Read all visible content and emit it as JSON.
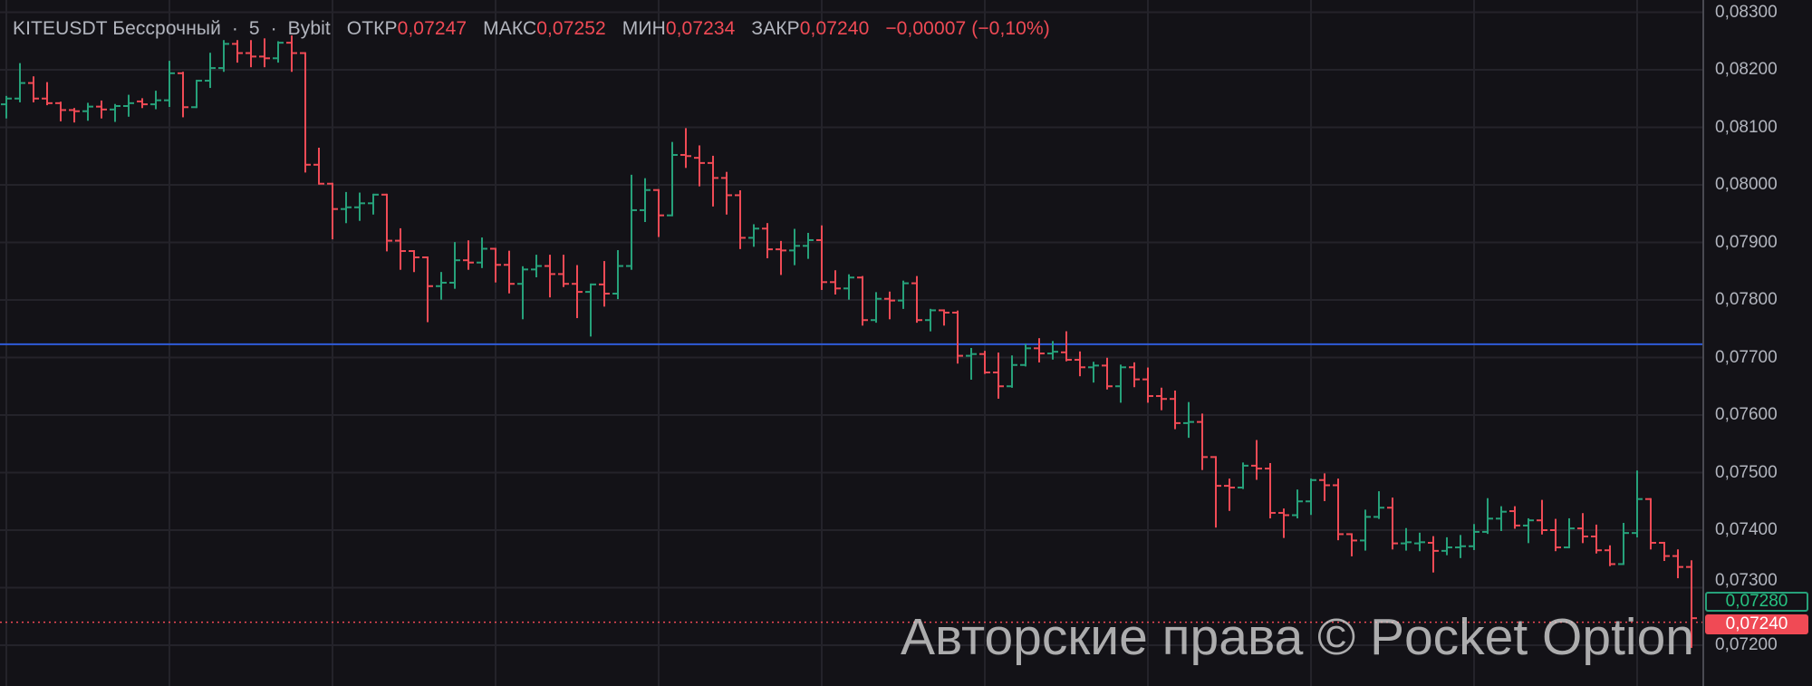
{
  "header": {
    "symbol": "KITEUSDT Бессрочный",
    "interval": "5",
    "exchange": "Bybit",
    "separator": "·",
    "open_label": "ОТКР",
    "open_value": "0,07247",
    "high_label": "МАКС",
    "high_value": "0,07252",
    "low_label": "МИН",
    "low_value": "0,07234",
    "close_label": "ЗАКР",
    "close_value": "0,07240",
    "change": "−0,00007 (−0,10%)"
  },
  "price_axis": {
    "labels": [
      "0,08300",
      "0,08200",
      "0,08100",
      "0,08000",
      "0,07900",
      "0,07800",
      "0,07700",
      "0,07600",
      "0,07500",
      "0,07400",
      "0,07300",
      "0,07200"
    ]
  },
  "price_tags": {
    "green": {
      "text": "0,07280",
      "price": 0.0728
    },
    "red": {
      "text": "0,07240",
      "price": 0.0724
    }
  },
  "watermark": "Авторские права © Pocket Option",
  "colors": {
    "background": "#131217",
    "up": "#26a17a",
    "down": "#f04a55",
    "grid": "#24232a",
    "horizontal_line": "#2f5bd8",
    "current_price_line": "#f04a55"
  },
  "chart_data": {
    "type": "bar",
    "bar_style": "ohlc",
    "title": "KITEUSDT Бессрочный · 5 · Bybit",
    "xlabel": "",
    "ylabel": "",
    "ylim": [
      0.0719,
      0.0831
    ],
    "grid": true,
    "horizontal_line": 0.07723,
    "current_price": 0.0724,
    "ohlc": [
      [
        0.0814,
        0.08153,
        0.08117,
        0.0815
      ],
      [
        0.0815,
        0.0821,
        0.08145,
        0.08177
      ],
      [
        0.08177,
        0.08187,
        0.08145,
        0.0815
      ],
      [
        0.0815,
        0.08177,
        0.0814,
        0.08142
      ],
      [
        0.08142,
        0.08143,
        0.08112,
        0.0813
      ],
      [
        0.0813,
        0.08132,
        0.0811,
        0.08128
      ],
      [
        0.08128,
        0.08141,
        0.08113,
        0.08136
      ],
      [
        0.08136,
        0.08145,
        0.08117,
        0.08131
      ],
      [
        0.08131,
        0.08139,
        0.08111,
        0.08137
      ],
      [
        0.08137,
        0.08155,
        0.0812,
        0.08142
      ],
      [
        0.08145,
        0.08149,
        0.08135,
        0.0814
      ],
      [
        0.0814,
        0.08162,
        0.08133,
        0.08147
      ],
      [
        0.08147,
        0.08214,
        0.08137,
        0.08194
      ],
      [
        0.08194,
        0.08195,
        0.08119,
        0.08135
      ],
      [
        0.08135,
        0.08181,
        0.08135,
        0.08181
      ],
      [
        0.08181,
        0.08228,
        0.0817,
        0.08203
      ],
      [
        0.08203,
        0.0825,
        0.08198,
        0.08245
      ],
      [
        0.08245,
        0.0825,
        0.08214,
        0.08229
      ],
      [
        0.08229,
        0.0825,
        0.08206,
        0.08223
      ],
      [
        0.08223,
        0.08253,
        0.08206,
        0.0822
      ],
      [
        0.0822,
        0.08248,
        0.08214,
        0.08247
      ],
      [
        0.08247,
        0.08258,
        0.08198,
        0.08229
      ],
      [
        0.08229,
        0.08229,
        0.08023,
        0.08035
      ],
      [
        0.08035,
        0.08063,
        0.08002,
        0.08002
      ],
      [
        0.08002,
        0.08002,
        0.07907,
        0.07958
      ],
      [
        0.07958,
        0.07986,
        0.07935,
        0.07961
      ],
      [
        0.07961,
        0.07985,
        0.07939,
        0.07968
      ],
      [
        0.07968,
        0.07983,
        0.0795,
        0.07983
      ],
      [
        0.07983,
        0.07983,
        0.07886,
        0.07903
      ],
      [
        0.07903,
        0.07923,
        0.07854,
        0.07885
      ],
      [
        0.07885,
        0.07885,
        0.0785,
        0.07874
      ],
      [
        0.07874,
        0.07874,
        0.07763,
        0.07824
      ],
      [
        0.07824,
        0.07847,
        0.07802,
        0.0783
      ],
      [
        0.0783,
        0.07899,
        0.07821,
        0.07869
      ],
      [
        0.07869,
        0.07902,
        0.07854,
        0.07865
      ],
      [
        0.07865,
        0.07907,
        0.07857,
        0.07889
      ],
      [
        0.07889,
        0.07889,
        0.07832,
        0.07861
      ],
      [
        0.07861,
        0.07884,
        0.07813,
        0.07828
      ],
      [
        0.07828,
        0.07857,
        0.07768,
        0.07853
      ],
      [
        0.07853,
        0.07877,
        0.07841,
        0.07859
      ],
      [
        0.07859,
        0.07877,
        0.07806,
        0.07845
      ],
      [
        0.07845,
        0.07877,
        0.07824,
        0.07828
      ],
      [
        0.07828,
        0.07859,
        0.0777,
        0.07814
      ],
      [
        0.07814,
        0.07827,
        0.07738,
        0.07827
      ],
      [
        0.07827,
        0.07866,
        0.0779,
        0.07811
      ],
      [
        0.07811,
        0.07885,
        0.07803,
        0.07859
      ],
      [
        0.07859,
        0.08016,
        0.07854,
        0.07956
      ],
      [
        0.07956,
        0.0801,
        0.07937,
        0.07991
      ],
      [
        0.07991,
        0.07991,
        0.07911,
        0.07947
      ],
      [
        0.07947,
        0.08073,
        0.07947,
        0.08052
      ],
      [
        0.08052,
        0.08097,
        0.08031,
        0.0805
      ],
      [
        0.08047,
        0.08067,
        0.07999,
        0.08038
      ],
      [
        0.08038,
        0.08049,
        0.07964,
        0.08012
      ],
      [
        0.08012,
        0.08021,
        0.0795,
        0.07982
      ],
      [
        0.07982,
        0.07989,
        0.0789,
        0.07908
      ],
      [
        0.07908,
        0.0793,
        0.07894,
        0.07924
      ],
      [
        0.07924,
        0.07932,
        0.07874,
        0.07888
      ],
      [
        0.07888,
        0.07901,
        0.07845,
        0.07886
      ],
      [
        0.07886,
        0.07922,
        0.07862,
        0.07894
      ],
      [
        0.07894,
        0.07915,
        0.07873,
        0.07904
      ],
      [
        0.07904,
        0.07928,
        0.07819,
        0.07831
      ],
      [
        0.07831,
        0.0785,
        0.07811,
        0.0782
      ],
      [
        0.0782,
        0.07843,
        0.07802,
        0.07839
      ],
      [
        0.07839,
        0.0784,
        0.07757,
        0.07765
      ],
      [
        0.07765,
        0.07812,
        0.07762,
        0.07802
      ],
      [
        0.07802,
        0.07813,
        0.07768,
        0.07799
      ],
      [
        0.07799,
        0.07832,
        0.07786,
        0.07829
      ],
      [
        0.07829,
        0.0784,
        0.07762,
        0.07765
      ],
      [
        0.07765,
        0.07783,
        0.07747,
        0.07782
      ],
      [
        0.07782,
        0.07782,
        0.07757,
        0.07778
      ],
      [
        0.07778,
        0.0778,
        0.07691,
        0.07703
      ],
      [
        0.07703,
        0.07715,
        0.07663,
        0.07706
      ],
      [
        0.07706,
        0.0771,
        0.07673,
        0.07674
      ],
      [
        0.07674,
        0.07707,
        0.0763,
        0.0765
      ],
      [
        0.0765,
        0.07702,
        0.07649,
        0.07687
      ],
      [
        0.07687,
        0.07722,
        0.07686,
        0.07716
      ],
      [
        0.07716,
        0.07732,
        0.07693,
        0.07707
      ],
      [
        0.07707,
        0.07727,
        0.07698,
        0.0771
      ],
      [
        0.07709,
        0.07744,
        0.07695,
        0.07696
      ],
      [
        0.07696,
        0.07709,
        0.07669,
        0.07683
      ],
      [
        0.07683,
        0.07691,
        0.07658,
        0.07686
      ],
      [
        0.07686,
        0.07698,
        0.07646,
        0.0765
      ],
      [
        0.0765,
        0.07686,
        0.07623,
        0.07683
      ],
      [
        0.07683,
        0.0769,
        0.0765,
        0.07662
      ],
      [
        0.07662,
        0.07681,
        0.07623,
        0.07633
      ],
      [
        0.07633,
        0.07646,
        0.0761,
        0.07628
      ],
      [
        0.07628,
        0.07641,
        0.07577,
        0.07586
      ],
      [
        0.07586,
        0.07621,
        0.07562,
        0.07588
      ],
      [
        0.07588,
        0.07601,
        0.07506,
        0.07527
      ],
      [
        0.07527,
        0.07527,
        0.07406,
        0.07477
      ],
      [
        0.07477,
        0.07488,
        0.07435,
        0.07474
      ],
      [
        0.07474,
        0.07516,
        0.07473,
        0.07512
      ],
      [
        0.07512,
        0.07555,
        0.07489,
        0.07507
      ],
      [
        0.07507,
        0.07515,
        0.07422,
        0.0743
      ],
      [
        0.0743,
        0.07436,
        0.07388,
        0.07426
      ],
      [
        0.07426,
        0.07469,
        0.07422,
        0.0745
      ],
      [
        0.0745,
        0.07488,
        0.07428,
        0.07487
      ],
      [
        0.07487,
        0.07497,
        0.07452,
        0.07478
      ],
      [
        0.07478,
        0.07488,
        0.07384,
        0.07393
      ],
      [
        0.07393,
        0.07393,
        0.07356,
        0.07382
      ],
      [
        0.07382,
        0.07434,
        0.07366,
        0.07423
      ],
      [
        0.07423,
        0.07466,
        0.07421,
        0.07439
      ],
      [
        0.07439,
        0.07455,
        0.07368,
        0.07377
      ],
      [
        0.07377,
        0.07402,
        0.07366,
        0.07379
      ],
      [
        0.07377,
        0.07394,
        0.07365,
        0.07379
      ],
      [
        0.07378,
        0.07388,
        0.07328,
        0.07364
      ],
      [
        0.07364,
        0.07386,
        0.07358,
        0.0737
      ],
      [
        0.0737,
        0.0739,
        0.07353,
        0.07372
      ],
      [
        0.07372,
        0.07409,
        0.07367,
        0.07397
      ],
      [
        0.07397,
        0.07454,
        0.07395,
        0.0742
      ],
      [
        0.0742,
        0.0744,
        0.074,
        0.07432
      ],
      [
        0.07433,
        0.0744,
        0.07404,
        0.07408
      ],
      [
        0.07408,
        0.07419,
        0.07379,
        0.07417
      ],
      [
        0.07417,
        0.07451,
        0.07394,
        0.074
      ],
      [
        0.074,
        0.07418,
        0.07365,
        0.0737
      ],
      [
        0.0737,
        0.07419,
        0.0737,
        0.07403
      ],
      [
        0.07403,
        0.07428,
        0.07379,
        0.07389
      ],
      [
        0.07389,
        0.07408,
        0.07361,
        0.07365
      ],
      [
        0.07365,
        0.07372,
        0.07339,
        0.07341
      ],
      [
        0.07341,
        0.07411,
        0.07341,
        0.07395
      ],
      [
        0.07395,
        0.07502,
        0.07389,
        0.07454
      ],
      [
        0.07454,
        0.07454,
        0.07368,
        0.07378
      ],
      [
        0.07378,
        0.07378,
        0.07348,
        0.07355
      ],
      [
        0.07355,
        0.07365,
        0.07318,
        0.07336
      ],
      [
        0.07336,
        0.07346,
        0.07197,
        0.07247
      ]
    ]
  }
}
